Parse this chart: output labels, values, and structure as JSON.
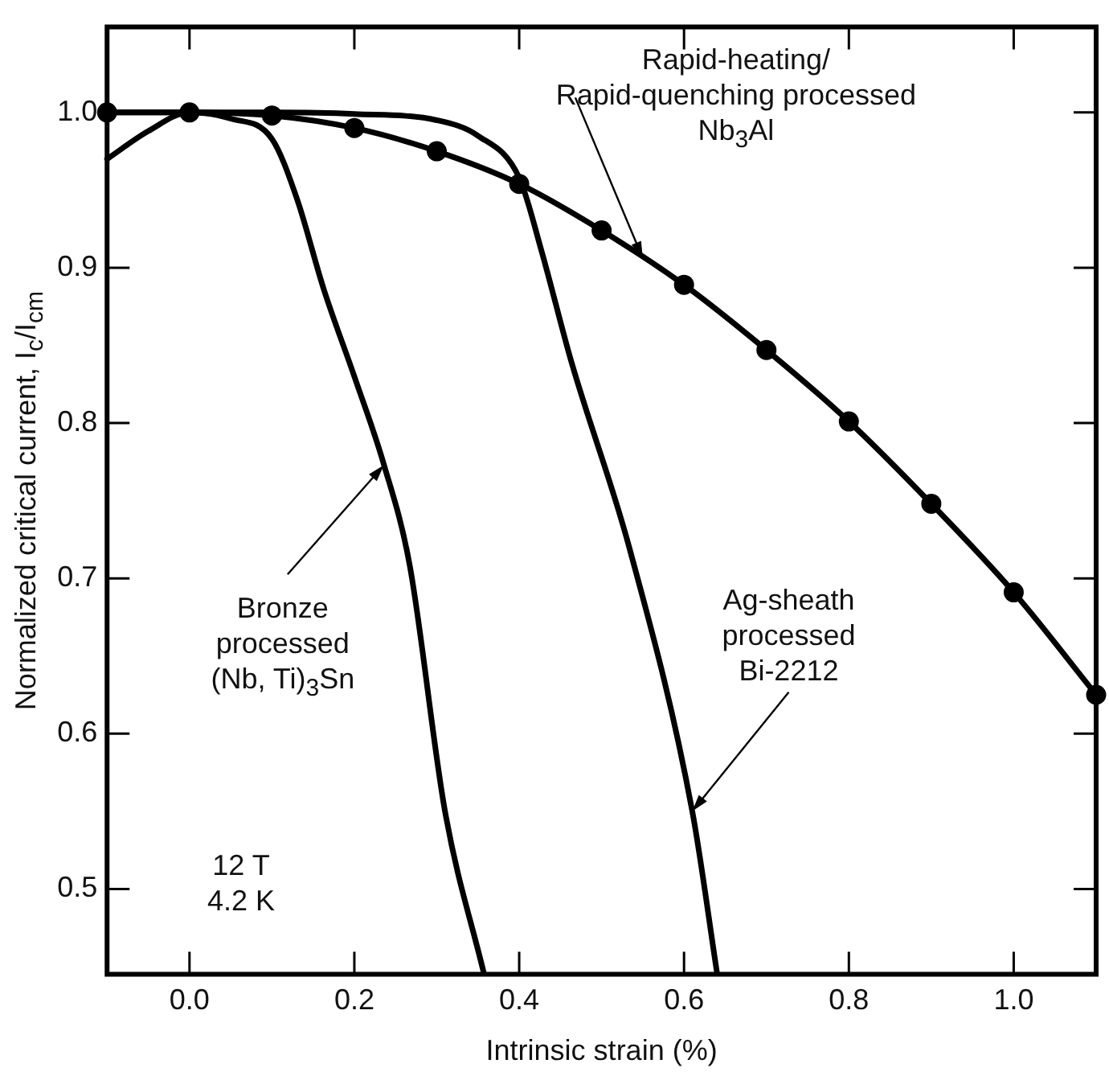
{
  "chart_data": {
    "type": "line",
    "xlabel": "Intrinsic strain (%)",
    "ylabel": "Normalized critical current, I$_{c}$/I$_{cm}$",
    "xlim": [
      -0.1,
      1.1
    ],
    "ylim": [
      0.445,
      1.055
    ],
    "xticks": [
      {
        "value": 0,
        "label": "0.0"
      },
      0.2,
      0.4,
      0.6,
      0.8,
      {
        "value": 1,
        "label": "1.0"
      }
    ],
    "yticks": [
      0.5,
      0.6,
      0.7,
      0.8,
      0.9,
      {
        "value": 1,
        "label": "1.0"
      }
    ],
    "grid": false,
    "legend": false,
    "line_style": "solid",
    "series": [
      {
        "color": "#000000",
        "marker": "circle",
        "x": [
          -0.1,
          0,
          0.1,
          0.2,
          0.3,
          0.4,
          0.5,
          0.6,
          0.7,
          0.8,
          0.9,
          1.0,
          1.1
        ],
        "values": [
          1.0,
          1.0,
          0.998,
          0.99,
          0.975,
          0.954,
          0.924,
          0.889,
          0.847,
          0.801,
          0.748,
          0.691,
          0.625
        ]
      },
      {
        "color": "#000000",
        "marker": "none",
        "x": [
          -0.1,
          -0.05,
          0,
          0.05,
          0.1,
          0.13,
          0.163,
          0.2,
          0.236,
          0.267,
          0.31,
          0.357
        ],
        "values": [
          0.97,
          0.988,
          1.0,
          0.996,
          0.983,
          0.945,
          0.886,
          0.83,
          0.773,
          0.709,
          0.55,
          0.446
        ]
      },
      {
        "color": "#000000",
        "marker": "none",
        "x": [
          -0.1,
          0.1,
          0.2,
          0.3,
          0.35,
          0.4,
          0.427,
          0.463,
          0.534,
          0.61,
          0.64
        ],
        "values": [
          1.0,
          1.0,
          0.999,
          0.995,
          0.985,
          0.958,
          0.911,
          0.84,
          0.719,
          0.55,
          0.446
        ]
      }
    ],
    "annotations": [
      {
        "text": "Rapid-heating/\nRapid-quenching processed\nNb$_{3}$Al",
        "x": 0.55,
        "y": 0.906
      },
      {
        "text": "Bronze\nprocessed\n(Nb, Ti)$_{3}$Sn",
        "x": 0.236,
        "y": 0.773
      },
      {
        "text": "Ag-sheath\nprocessed\nBi-2212",
        "x": 0.61,
        "y": 0.55
      },
      "12 T\n4.2 K"
    ]
  }
}
